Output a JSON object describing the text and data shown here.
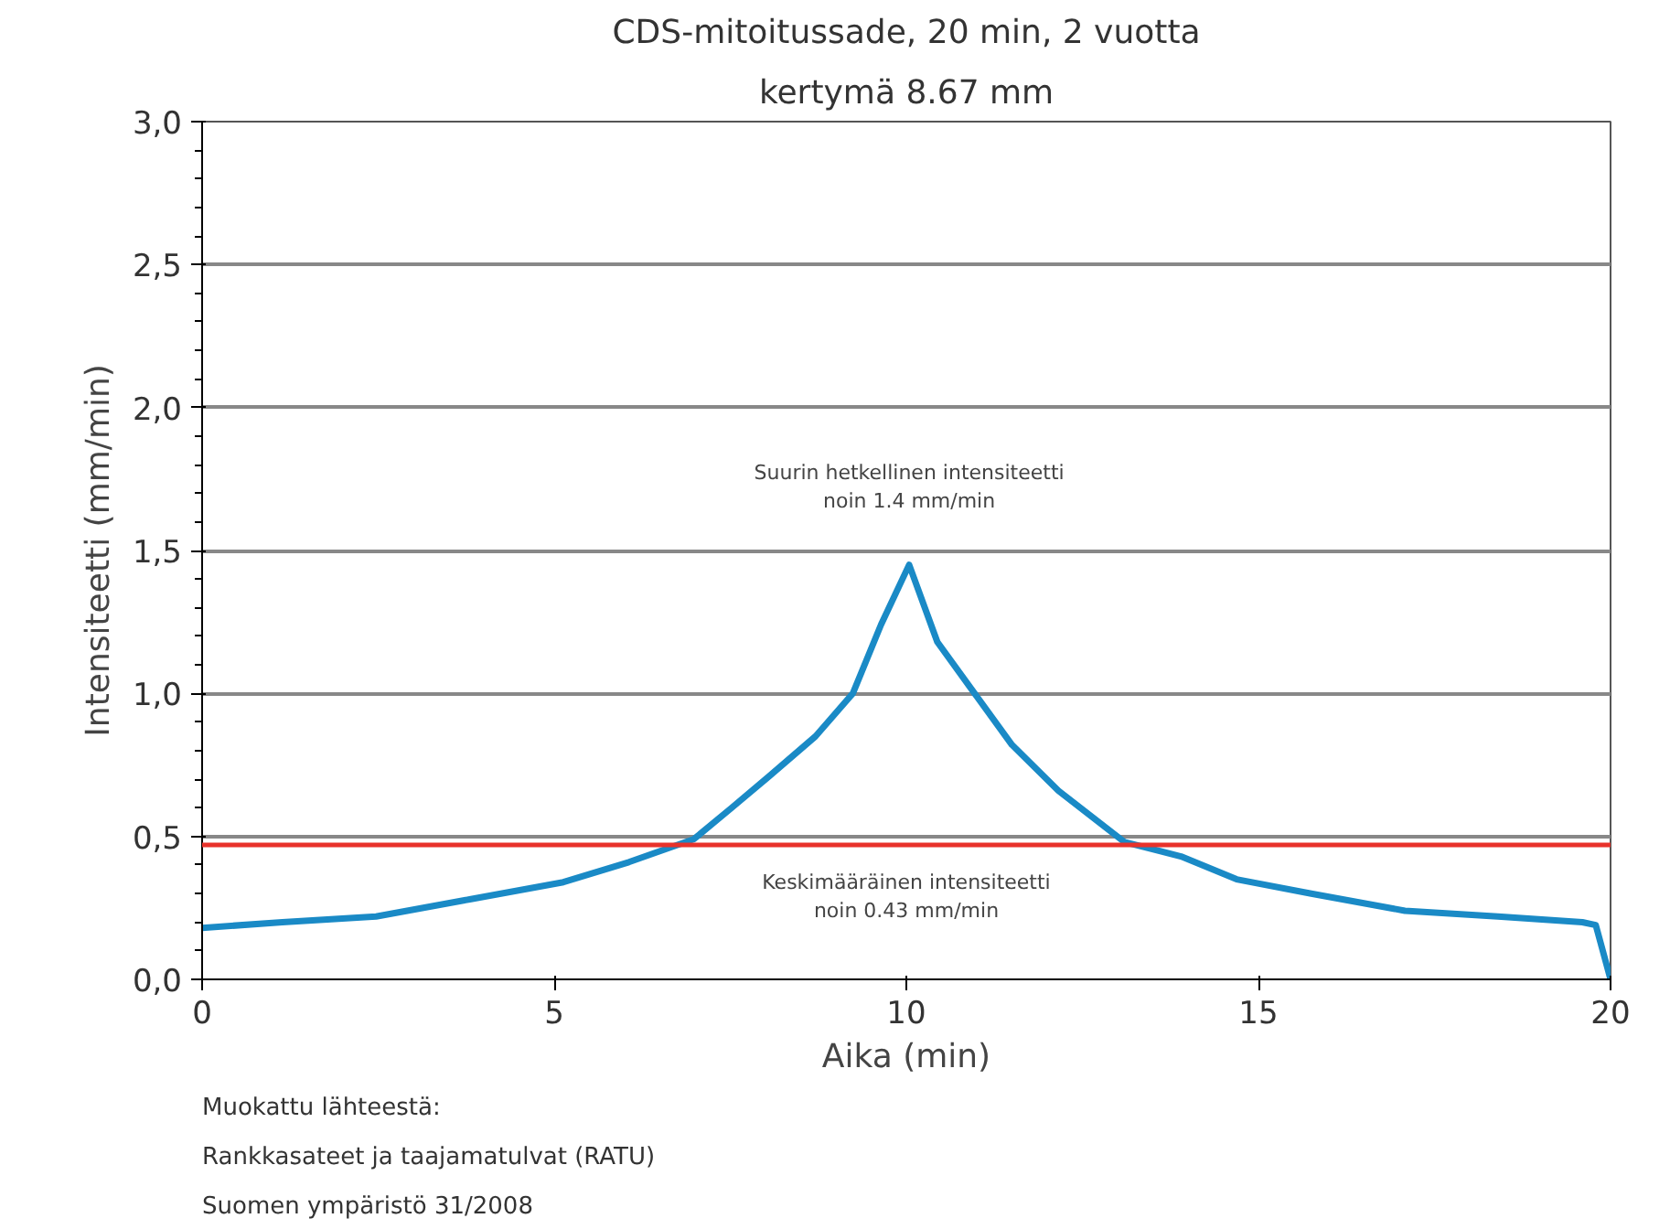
{
  "chart_data": {
    "type": "line",
    "title": "CDS-mitoitussade, 20 min, 2 vuotta",
    "subtitle": "kertymä 8.67 mm",
    "xlabel": "Aika (min)",
    "ylabel": "Intensiteetti (mm/min)",
    "x": [
      0,
      1.14,
      2.47,
      3.8,
      5.13,
      6.06,
      6.98,
      7.52,
      8.05,
      8.71,
      9.24,
      9.64,
      10.04,
      10.44,
      10.97,
      11.5,
      12.16,
      13.1,
      13.9,
      14.69,
      15.75,
      17.08,
      18.4,
      19.6,
      19.79,
      20
    ],
    "series": [
      {
        "color": "#1a8ac6",
        "values": [
          0.18,
          0.2,
          0.22,
          0.28,
          0.34,
          0.41,
          0.49,
          0.6,
          0.71,
          0.85,
          1.0,
          1.24,
          1.45,
          1.18,
          1.0,
          0.82,
          0.66,
          0.48,
          0.43,
          0.35,
          0.3,
          0.24,
          0.22,
          0.2,
          0.19,
          0.0
        ]
      }
    ],
    "xlim": [
      0,
      20
    ],
    "xticks": [
      0,
      5,
      10,
      15,
      20
    ],
    "ylim": [
      0,
      3
    ],
    "yticks": [
      {
        "value": 0,
        "label": "0,0"
      },
      {
        "value": 0.5,
        "label": "0,5"
      },
      {
        "value": 1,
        "label": "1,0"
      },
      {
        "value": 1.5,
        "label": "1,5"
      },
      {
        "value": 2,
        "label": "2,0"
      },
      {
        "value": 2.5,
        "label": "2,5"
      },
      {
        "value": 3,
        "label": "3,0"
      }
    ],
    "grid": "y",
    "marker": "none",
    "line_style": "solid",
    "ref_lines": [
      {
        "axis": "y",
        "value": 0.47,
        "color": "#e8322b"
      }
    ],
    "annotations": [
      "Suurin hetkellinen intensiteetti\nnoin 1.4 mm/min",
      "Keskimääräinen intensiteetti\nnoin 0.43 mm/min",
      "Muokattu lähteestä:\nRankkasateet ja taajamatulvat (RATU)\nSuomen ympäristö 31/2008"
    ]
  }
}
